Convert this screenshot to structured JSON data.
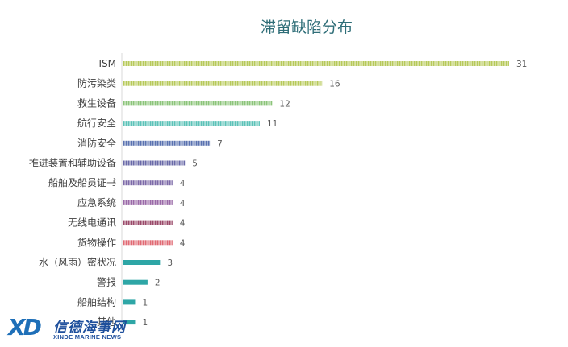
{
  "chart_data": {
    "type": "bar",
    "orientation": "horizontal",
    "title": "滞留缺陷分布",
    "categories": [
      "ISM",
      "防污染类",
      "救生设备",
      "航行安全",
      "消防安全",
      "推进装置和辅助设备",
      "船舶及船员证书",
      "应急系统",
      "无线电通讯",
      "货物操作",
      "水（风雨）密状况",
      "警报",
      "船舶结构",
      "其他"
    ],
    "values": [
      31,
      16,
      12,
      11,
      7,
      5,
      4,
      4,
      4,
      4,
      3,
      2,
      1,
      1
    ],
    "colors": [
      "#b7c95b",
      "#b7c95b",
      "#8cc47a",
      "#5cc2b8",
      "#5a72b0",
      "#6a6aa8",
      "#7d6aa8",
      "#9a6aa8",
      "#9a4a6a",
      "#e06a74",
      "#2ea6a6",
      "#2ea6a6",
      "#2ea6a6",
      "#2ea6a6"
    ],
    "grid": false,
    "legend": "none",
    "data_labels": true
  },
  "watermark": {
    "logo_text": "XD",
    "name_cn": "信德海事网",
    "name_en": "XINDE MARINE NEWS"
  }
}
